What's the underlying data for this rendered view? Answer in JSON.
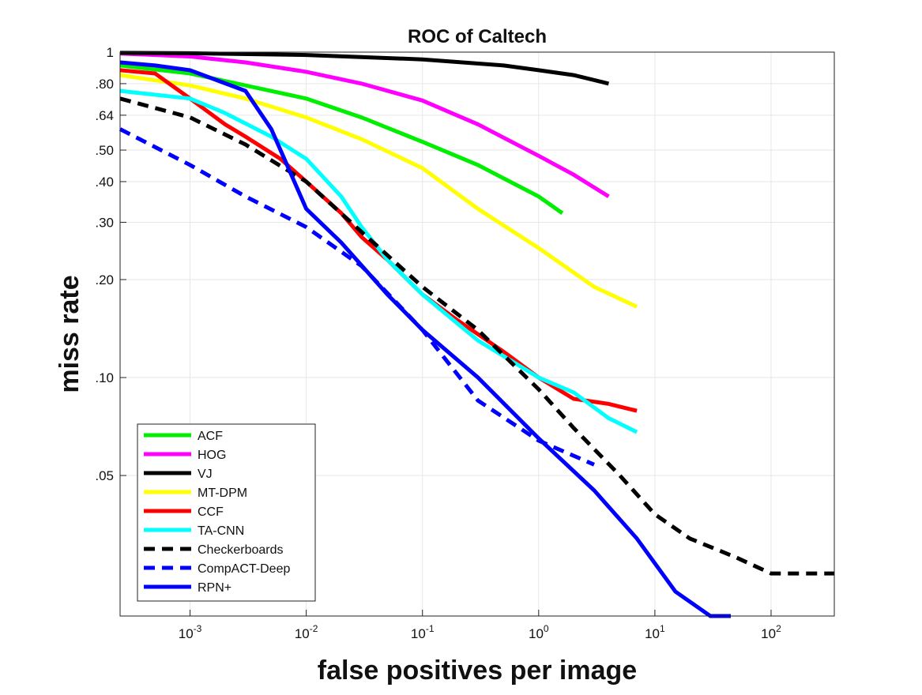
{
  "chart_data": {
    "type": "line",
    "title": "ROC of Caltech",
    "xlabel": "false positives per image",
    "ylabel": "miss rate",
    "xscale": "log",
    "yscale": "log",
    "xlim": [
      0.00025,
      350
    ],
    "ylim": [
      0.0185,
      1
    ],
    "grid": true,
    "legend_position": "bottom-left",
    "x_ticks": [
      {
        "value": 0.001,
        "base": "10",
        "exp": "-3"
      },
      {
        "value": 0.01,
        "base": "10",
        "exp": "-2"
      },
      {
        "value": 0.1,
        "base": "10",
        "exp": "-1"
      },
      {
        "value": 1,
        "base": "10",
        "exp": "0"
      },
      {
        "value": 10,
        "base": "10",
        "exp": "1"
      },
      {
        "value": 100,
        "base": "10",
        "exp": "2"
      }
    ],
    "y_ticks": [
      {
        "value": 1,
        "label": "1"
      },
      {
        "value": 0.8,
        "label": ".80"
      },
      {
        "value": 0.64,
        "label": ".64"
      },
      {
        "value": 0.5,
        "label": ".50"
      },
      {
        "value": 0.4,
        "label": ".40"
      },
      {
        "value": 0.3,
        "label": ".30"
      },
      {
        "value": 0.2,
        "label": ".20"
      },
      {
        "value": 0.1,
        "label": ".10"
      },
      {
        "value": 0.05,
        "label": ".05"
      }
    ],
    "series": [
      {
        "name": "ACF",
        "color": "#00ee00",
        "dash": "solid",
        "x": [
          0.00025,
          0.001,
          0.003,
          0.01,
          0.03,
          0.1,
          0.3,
          1,
          1.6
        ],
        "y": [
          0.91,
          0.86,
          0.79,
          0.72,
          0.63,
          0.53,
          0.45,
          0.36,
          0.32
        ]
      },
      {
        "name": "HOG",
        "color": "#ff00ff",
        "dash": "solid",
        "x": [
          0.00025,
          0.001,
          0.003,
          0.01,
          0.03,
          0.1,
          0.3,
          1,
          2,
          4
        ],
        "y": [
          0.99,
          0.97,
          0.93,
          0.87,
          0.8,
          0.71,
          0.6,
          0.48,
          0.42,
          0.36
        ]
      },
      {
        "name": "VJ",
        "color": "#000000",
        "dash": "solid",
        "x": [
          0.00025,
          0.001,
          0.01,
          0.1,
          0.5,
          1,
          2,
          4
        ],
        "y": [
          0.995,
          0.992,
          0.98,
          0.95,
          0.91,
          0.88,
          0.85,
          0.8
        ]
      },
      {
        "name": "MT-DPM",
        "color": "#ffff00",
        "dash": "solid",
        "x": [
          0.00025,
          0.001,
          0.003,
          0.01,
          0.03,
          0.1,
          0.3,
          1,
          3,
          7
        ],
        "y": [
          0.85,
          0.79,
          0.72,
          0.63,
          0.54,
          0.44,
          0.33,
          0.25,
          0.19,
          0.165
        ]
      },
      {
        "name": "CCF",
        "color": "#ff0000",
        "dash": "solid",
        "x": [
          0.00025,
          0.0005,
          0.001,
          0.002,
          0.003,
          0.006,
          0.01,
          0.02,
          0.03,
          0.05,
          0.1,
          0.2,
          0.5,
          1,
          2,
          4,
          7
        ],
        "y": [
          0.88,
          0.86,
          0.72,
          0.6,
          0.55,
          0.47,
          0.4,
          0.32,
          0.27,
          0.23,
          0.18,
          0.15,
          0.12,
          0.1,
          0.086,
          0.083,
          0.079
        ]
      },
      {
        "name": "TA-CNN",
        "color": "#00ffff",
        "dash": "solid",
        "x": [
          0.00025,
          0.001,
          0.002,
          0.005,
          0.01,
          0.02,
          0.03,
          0.05,
          0.1,
          0.3,
          1,
          2,
          4,
          7
        ],
        "y": [
          0.76,
          0.72,
          0.65,
          0.55,
          0.47,
          0.36,
          0.29,
          0.23,
          0.18,
          0.13,
          0.1,
          0.09,
          0.075,
          0.068
        ]
      },
      {
        "name": "Checkerboards",
        "color": "#000000",
        "dash": "dashed",
        "x": [
          0.00025,
          0.001,
          0.003,
          0.01,
          0.03,
          0.1,
          0.3,
          1,
          2,
          5,
          10,
          20,
          50,
          100,
          350
        ],
        "y": [
          0.72,
          0.63,
          0.52,
          0.4,
          0.28,
          0.19,
          0.14,
          0.092,
          0.07,
          0.05,
          0.038,
          0.032,
          0.028,
          0.025,
          0.025
        ]
      },
      {
        "name": "CompACT-Deep",
        "color": "#0000ff",
        "dash": "dashed",
        "x": [
          0.00025,
          0.001,
          0.003,
          0.01,
          0.03,
          0.1,
          0.3,
          1,
          3
        ],
        "y": [
          0.58,
          0.45,
          0.36,
          0.29,
          0.22,
          0.14,
          0.085,
          0.064,
          0.054
        ]
      },
      {
        "name": "RPN+",
        "color": "#0000ff",
        "dash": "solid",
        "x": [
          0.00025,
          0.0005,
          0.001,
          0.003,
          0.005,
          0.01,
          0.02,
          0.05,
          0.1,
          0.3,
          1,
          3,
          7,
          15,
          30,
          45
        ],
        "y": [
          0.93,
          0.91,
          0.88,
          0.76,
          0.58,
          0.33,
          0.26,
          0.18,
          0.14,
          0.1,
          0.065,
          0.045,
          0.032,
          0.022,
          0.0185,
          0.0185
        ]
      }
    ]
  }
}
